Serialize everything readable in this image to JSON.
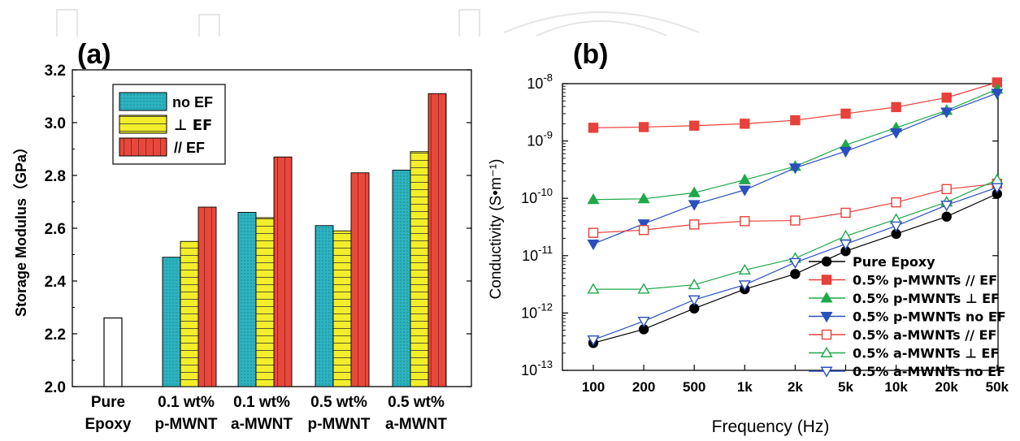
{
  "panel_labels": {
    "a": "(a)",
    "b": "(b)"
  },
  "colors": {
    "no_EF": "#2cb3c0",
    "perp_EF": "#f2ee2a",
    "par_EF": "#e8483c",
    "pure": "#ffffff",
    "red": "#e8403a",
    "green": "#1ea84a",
    "blue": "#2a4fbe",
    "black": "#000000"
  },
  "chart_data": [
    {
      "type": "bar",
      "panel": "(a)",
      "title": "",
      "xlabel": "",
      "ylabel": "Storage Modulus（GPa）",
      "ylim": [
        2.0,
        3.2
      ],
      "yticks": [
        "2.0",
        "2.2",
        "2.4",
        "2.6",
        "2.8",
        "3.0",
        "3.2"
      ],
      "categories": [
        [
          "Pure",
          "Epoxy"
        ],
        [
          "0.1 wt%",
          "p-MWNT"
        ],
        [
          "0.1 wt%",
          "a-MWNT"
        ],
        [
          "0.5 wt%",
          "p-MWNT"
        ],
        [
          "0.5 wt%",
          "a-MWNT"
        ]
      ],
      "pure_epoxy_value": 2.26,
      "series": [
        {
          "name": "no EF",
          "values": [
            null,
            2.49,
            2.66,
            2.61,
            2.82
          ]
        },
        {
          "name": "⊥ EF",
          "values": [
            null,
            2.55,
            2.64,
            2.59,
            2.89
          ]
        },
        {
          "name": "// EF",
          "values": [
            null,
            2.68,
            2.87,
            2.81,
            3.11
          ]
        }
      ],
      "legend_position": "top-left"
    },
    {
      "type": "line",
      "panel": "(b)",
      "title": "",
      "xlabel": "Frequency (Hz)",
      "ylabel": "Conductivity (S•m⁻¹)",
      "x": [
        "100",
        "200",
        "500",
        "1k",
        "2k",
        "5k",
        "10k",
        "20k",
        "50k"
      ],
      "y_scale": "log",
      "ylim": [
        1e-13,
        1e-08
      ],
      "yticks": [
        {
          "base": "10",
          "exp": "-13"
        },
        {
          "base": "10",
          "exp": "-12"
        },
        {
          "base": "10",
          "exp": "-11"
        },
        {
          "base": "10",
          "exp": "-10"
        },
        {
          "base": "10",
          "exp": "-9"
        },
        {
          "base": "10",
          "exp": "-8"
        }
      ],
      "series": [
        {
          "name": "Pure Epoxy",
          "color": "#000000",
          "marker": "circle",
          "filled": true,
          "values": [
            3e-13,
            5.2e-13,
            1.2e-12,
            2.6e-12,
            4.8e-12,
            1.2e-11,
            2.4e-11,
            4.8e-11,
            1.2e-10
          ]
        },
        {
          "name": "0.5% p-MWNTs  // EF",
          "color": "#e8403a",
          "marker": "square",
          "filled": true,
          "values": [
            1.7e-09,
            1.75e-09,
            1.85e-09,
            2e-09,
            2.3e-09,
            3e-09,
            3.9e-09,
            5.7e-09,
            1.05e-08
          ]
        },
        {
          "name": "0.5% p-MWNTs ⊥ EF",
          "color": "#1ea84a",
          "marker": "triangle-up",
          "filled": true,
          "values": [
            9.5e-11,
            9.8e-11,
            1.25e-10,
            2.1e-10,
            3.6e-10,
            8.5e-10,
            1.7e-09,
            3.4e-09,
            8e-09
          ]
        },
        {
          "name": "0.5% p-MWNTs no  EF",
          "color": "#2a4fbe",
          "marker": "triangle-down",
          "filled": true,
          "values": [
            1.6e-11,
            3.6e-11,
            7.8e-11,
            1.4e-10,
            3.4e-10,
            6.6e-10,
            1.4e-09,
            3.2e-09,
            6.8e-09
          ]
        },
        {
          "name": "0.5% a-MWNTs  // EF",
          "color": "#e8403a",
          "marker": "square",
          "filled": false,
          "values": [
            2.5e-11,
            2.8e-11,
            3.5e-11,
            4e-11,
            4.1e-11,
            5.6e-11,
            8.5e-11,
            1.45e-10,
            1.8e-10
          ]
        },
        {
          "name": "0.5% a-MWNTs ⊥ EF",
          "color": "#1ea84a",
          "marker": "triangle-up",
          "filled": false,
          "values": [
            2.6e-12,
            2.6e-12,
            3.1e-12,
            5.6e-12,
            9e-12,
            2.2e-11,
            4.3e-11,
            8.6e-11,
            2.1e-10
          ]
        },
        {
          "name": "0.5% a-MWNTs no  EF",
          "color": "#2a4fbe",
          "marker": "triangle-down",
          "filled": false,
          "values": [
            3.4e-13,
            7.2e-13,
            1.7e-12,
            3.1e-12,
            7.6e-12,
            1.6e-11,
            3.3e-11,
            7.6e-11,
            1.55e-10
          ]
        }
      ],
      "legend_position": "bottom-right"
    }
  ]
}
